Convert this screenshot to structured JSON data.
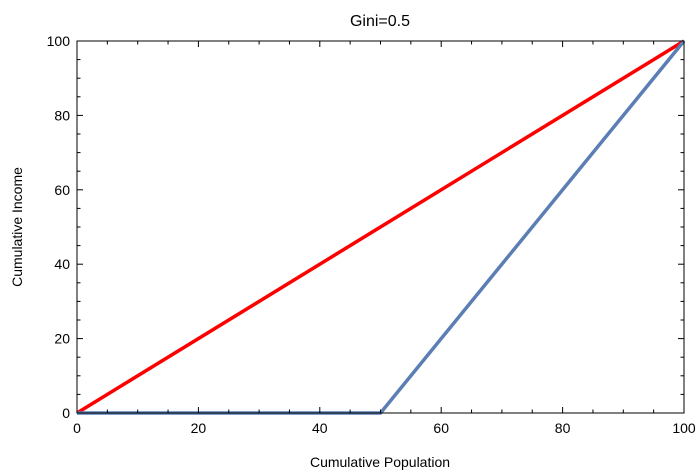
{
  "chart_data": {
    "type": "line",
    "title": "Gini=0.5",
    "xlabel": "Cumulative Population",
    "ylabel": "Cumulative Income",
    "xlim": [
      0,
      100
    ],
    "ylim": [
      0,
      100
    ],
    "x_ticks": [
      "0",
      "20",
      "40",
      "60",
      "80",
      "100"
    ],
    "y_ticks": [
      "0",
      "20",
      "40",
      "60",
      "80",
      "100"
    ],
    "grid": false,
    "series": [
      {
        "color": "#ff0000",
        "points": [
          [
            0,
            0
          ],
          [
            100,
            100
          ]
        ]
      },
      {
        "color": "#5b7fb5",
        "points": [
          [
            0,
            0
          ],
          [
            49,
            0
          ],
          [
            50,
            0
          ],
          [
            100,
            100
          ]
        ]
      }
    ]
  }
}
